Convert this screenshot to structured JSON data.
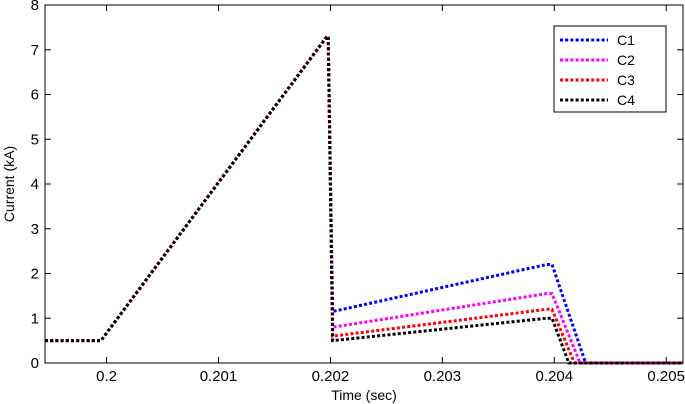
{
  "chart_data": {
    "type": "line",
    "title": "",
    "xlabel": "Time (sec)",
    "ylabel": "Current (kA)",
    "xlim": [
      0.19945,
      0.20515
    ],
    "ylim": [
      0,
      8
    ],
    "xticks": [
      0.2,
      0.201,
      0.202,
      0.203,
      0.204,
      0.205
    ],
    "xtick_labels": [
      "0.2",
      "0.201",
      "0.202",
      "0.203",
      "0.204",
      "0.205"
    ],
    "yticks": [
      0,
      1,
      2,
      3,
      4,
      5,
      6,
      7,
      8
    ],
    "ytick_labels": [
      "0",
      "1",
      "2",
      "3",
      "4",
      "5",
      "6",
      "7",
      "8"
    ],
    "grid": false,
    "legend_position": "top-right",
    "line_style": "dotted",
    "series": [
      {
        "name": "C1",
        "color": "#0000ff",
        "x": [
          0.19945,
          0.19995,
          0.20197,
          0.20198,
          0.20202,
          0.20393,
          0.20398,
          0.20428,
          0.20515
        ],
        "y": [
          0.5,
          0.5,
          7.3,
          7.3,
          1.15,
          2.2,
          2.2,
          0.0,
          0.0
        ]
      },
      {
        "name": "C2",
        "color": "#ff00ff",
        "x": [
          0.19945,
          0.19995,
          0.20197,
          0.20198,
          0.20202,
          0.20393,
          0.20398,
          0.20423,
          0.20515
        ],
        "y": [
          0.5,
          0.5,
          7.3,
          7.3,
          0.8,
          1.55,
          1.55,
          0.0,
          0.0
        ]
      },
      {
        "name": "C3",
        "color": "#ff0000",
        "x": [
          0.19945,
          0.19995,
          0.20197,
          0.20198,
          0.20202,
          0.20393,
          0.20398,
          0.20418,
          0.20515
        ],
        "y": [
          0.5,
          0.5,
          7.3,
          7.3,
          0.6,
          1.2,
          1.2,
          0.0,
          0.0
        ]
      },
      {
        "name": "C4",
        "color": "#000000",
        "x": [
          0.19945,
          0.19995,
          0.20197,
          0.20198,
          0.20202,
          0.20393,
          0.20398,
          0.20413,
          0.20515
        ],
        "y": [
          0.5,
          0.5,
          7.3,
          7.3,
          0.5,
          1.0,
          1.0,
          0.0,
          0.0
        ]
      }
    ]
  }
}
